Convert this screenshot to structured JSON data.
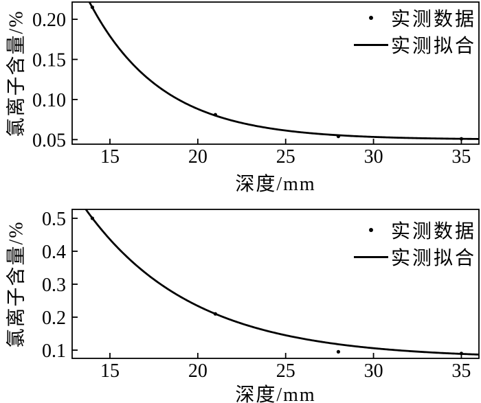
{
  "colors": {
    "ink": "#000000",
    "background": "#ffffff"
  },
  "chart_data": [
    {
      "type": "scatter",
      "title": "",
      "xlabel": "深度/mm",
      "ylabel": "氯离子含量/%",
      "xlim": [
        12.85,
        36.0
      ],
      "ylim": [
        0.0443,
        0.2215
      ],
      "xticks": [
        15,
        20,
        25,
        30,
        35
      ],
      "xtick_labels": [
        "15",
        "20",
        "25",
        "30",
        "35"
      ],
      "yticks": [
        0.05,
        0.1,
        0.15,
        0.2
      ],
      "ytick_labels": [
        "0.05",
        "0.10",
        "0.15",
        "0.20"
      ],
      "grid": false,
      "series": [
        {
          "name": "实测数据",
          "type": "scatter",
          "x": [
            14,
            21,
            28,
            35
          ],
          "y": [
            0.215,
            0.081,
            0.054,
            0.051
          ]
        },
        {
          "name": "实测拟合",
          "type": "line",
          "model": "y = y0 + A*exp(-k*x)",
          "y0": 0.05,
          "A": 4.98,
          "k": 0.2435
        }
      ],
      "legend": {
        "position": "upper right",
        "entries": [
          {
            "marker": "dot",
            "label": "实测数据"
          },
          {
            "marker": "line",
            "label": "实测拟合"
          }
        ]
      }
    },
    {
      "type": "scatter",
      "title": "",
      "xlabel": "深度/mm",
      "ylabel": "氯离子含量/%",
      "xlim": [
        12.85,
        36.0
      ],
      "ylim": [
        0.075,
        0.527
      ],
      "xticks": [
        15,
        20,
        25,
        30,
        35
      ],
      "xtick_labels": [
        "15",
        "20",
        "25",
        "30",
        "35"
      ],
      "yticks": [
        0.1,
        0.2,
        0.3,
        0.4,
        0.5
      ],
      "ytick_labels": [
        "0.1",
        "0.2",
        "0.3",
        "0.4",
        "0.5"
      ],
      "grid": false,
      "series": [
        {
          "name": "实测数据",
          "type": "scatter",
          "x": [
            14,
            21,
            28,
            35
          ],
          "y": [
            0.5,
            0.21,
            0.095,
            0.09
          ]
        },
        {
          "name": "实测拟合",
          "type": "line",
          "model": "y = y0 + A*exp(-k*x)",
          "y0": 0.075,
          "A": 4.22,
          "k": 0.1639
        }
      ],
      "legend": {
        "position": "upper right",
        "entries": [
          {
            "marker": "dot",
            "label": "实测数据"
          },
          {
            "marker": "line",
            "label": "实测拟合"
          }
        ]
      }
    }
  ]
}
